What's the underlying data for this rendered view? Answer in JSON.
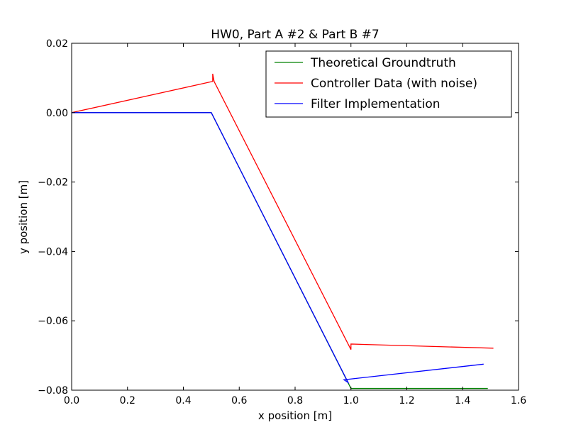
{
  "chart_data": {
    "type": "line",
    "title": "HW0, Part A #2 & Part B #7",
    "xlabel": "x position [m]",
    "ylabel": "y position [m]",
    "xlim": [
      0.0,
      1.6
    ],
    "ylim": [
      -0.08,
      0.02
    ],
    "xticks": [
      {
        "value": 0.0,
        "label": "0.0"
      },
      {
        "value": 0.2,
        "label": "0.2"
      },
      {
        "value": 0.4,
        "label": "0.4"
      },
      {
        "value": 0.6,
        "label": "0.6"
      },
      {
        "value": 0.8,
        "label": "0.8"
      },
      {
        "value": 1.0,
        "label": "1.0"
      },
      {
        "value": 1.2,
        "label": "1.2"
      },
      {
        "value": 1.4,
        "label": "1.4"
      },
      {
        "value": 1.6,
        "label": "1.6"
      }
    ],
    "yticks": [
      {
        "value": 0.02,
        "label": "0.02"
      },
      {
        "value": 0.0,
        "label": "0.00"
      },
      {
        "value": -0.02,
        "label": "−0.02"
      },
      {
        "value": -0.04,
        "label": "−0.04"
      },
      {
        "value": -0.06,
        "label": "−0.06"
      },
      {
        "value": -0.08,
        "label": "−0.08"
      }
    ],
    "grid": false,
    "legend_position": "top-right",
    "series": [
      {
        "name": "Theoretical Groundtruth",
        "color": "#008000",
        "points": [
          [
            0.0,
            0.0
          ],
          [
            0.5,
            0.0
          ],
          [
            1.0,
            -0.0795
          ],
          [
            1.49,
            -0.0795
          ]
        ]
      },
      {
        "name": "Controller Data (with noise)",
        "color": "#ff0000",
        "points": [
          [
            0.0,
            0.0
          ],
          [
            0.505,
            0.009
          ],
          [
            0.505,
            0.0112
          ],
          [
            0.51,
            0.009
          ],
          [
            1.0,
            -0.0683
          ],
          [
            1.0,
            -0.0667
          ],
          [
            1.51,
            -0.0679
          ]
        ]
      },
      {
        "name": "Filter Implementation",
        "color": "#0000ff",
        "points": [
          [
            0.0,
            0.0
          ],
          [
            0.5,
            0.0
          ],
          [
            0.99,
            -0.0778
          ],
          [
            0.975,
            -0.077
          ],
          [
            1.475,
            -0.0725
          ]
        ]
      }
    ]
  }
}
